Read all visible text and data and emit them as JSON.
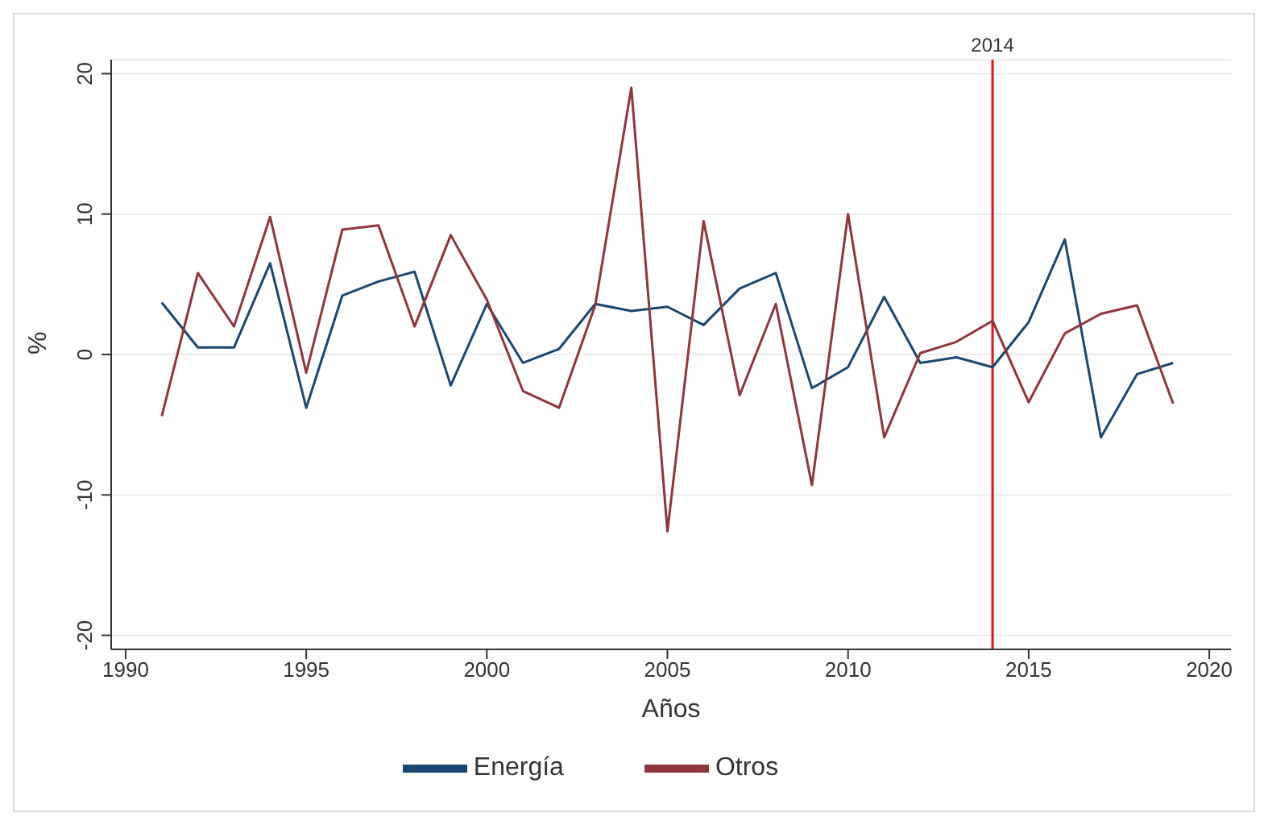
{
  "chart_data": {
    "type": "line",
    "xlabel": "Años",
    "ylabel": "%",
    "x": [
      1991,
      1992,
      1993,
      1994,
      1995,
      1996,
      1997,
      1998,
      1999,
      2000,
      2001,
      2002,
      2003,
      2004,
      2005,
      2006,
      2007,
      2008,
      2009,
      2010,
      2011,
      2012,
      2013,
      2014,
      2015,
      2016,
      2017,
      2018,
      2019
    ],
    "series": [
      {
        "name": "Energía",
        "color": "#1a476f",
        "values": [
          3.7,
          0.5,
          0.5,
          6.5,
          -3.8,
          4.2,
          5.2,
          5.9,
          -2.2,
          3.6,
          -0.6,
          0.4,
          3.6,
          3.1,
          3.4,
          2.1,
          4.7,
          5.8,
          -2.4,
          -0.9,
          4.1,
          -0.6,
          -0.2,
          -0.9,
          2.3,
          8.2,
          -5.9,
          -1.4,
          -0.6
        ]
      },
      {
        "name": "Otros",
        "color": "#90353b",
        "values": [
          -4.4,
          5.8,
          2.0,
          9.8,
          -1.3,
          8.9,
          9.2,
          2.0,
          8.5,
          3.9,
          -2.6,
          -3.8,
          3.5,
          19.0,
          -12.6,
          9.5,
          -2.9,
          3.6,
          -9.3,
          10.0,
          -5.9,
          0.1,
          0.9,
          2.4,
          -3.4,
          1.5,
          2.9,
          3.5,
          -3.5
        ]
      }
    ],
    "xlim": [
      1989.6,
      2020.6
    ],
    "xticks": [
      1990,
      1995,
      2000,
      2005,
      2010,
      2015,
      2020
    ],
    "ylim": [
      -21,
      21
    ],
    "yticks": [
      -20,
      -10,
      0,
      10,
      20
    ],
    "ref_lines": [
      {
        "axis": "x",
        "value": 2014,
        "label": "2014",
        "color": "#e8101a"
      }
    ],
    "grid": "y",
    "legend": "bottom",
    "marker": "none",
    "line_style": "solid"
  }
}
